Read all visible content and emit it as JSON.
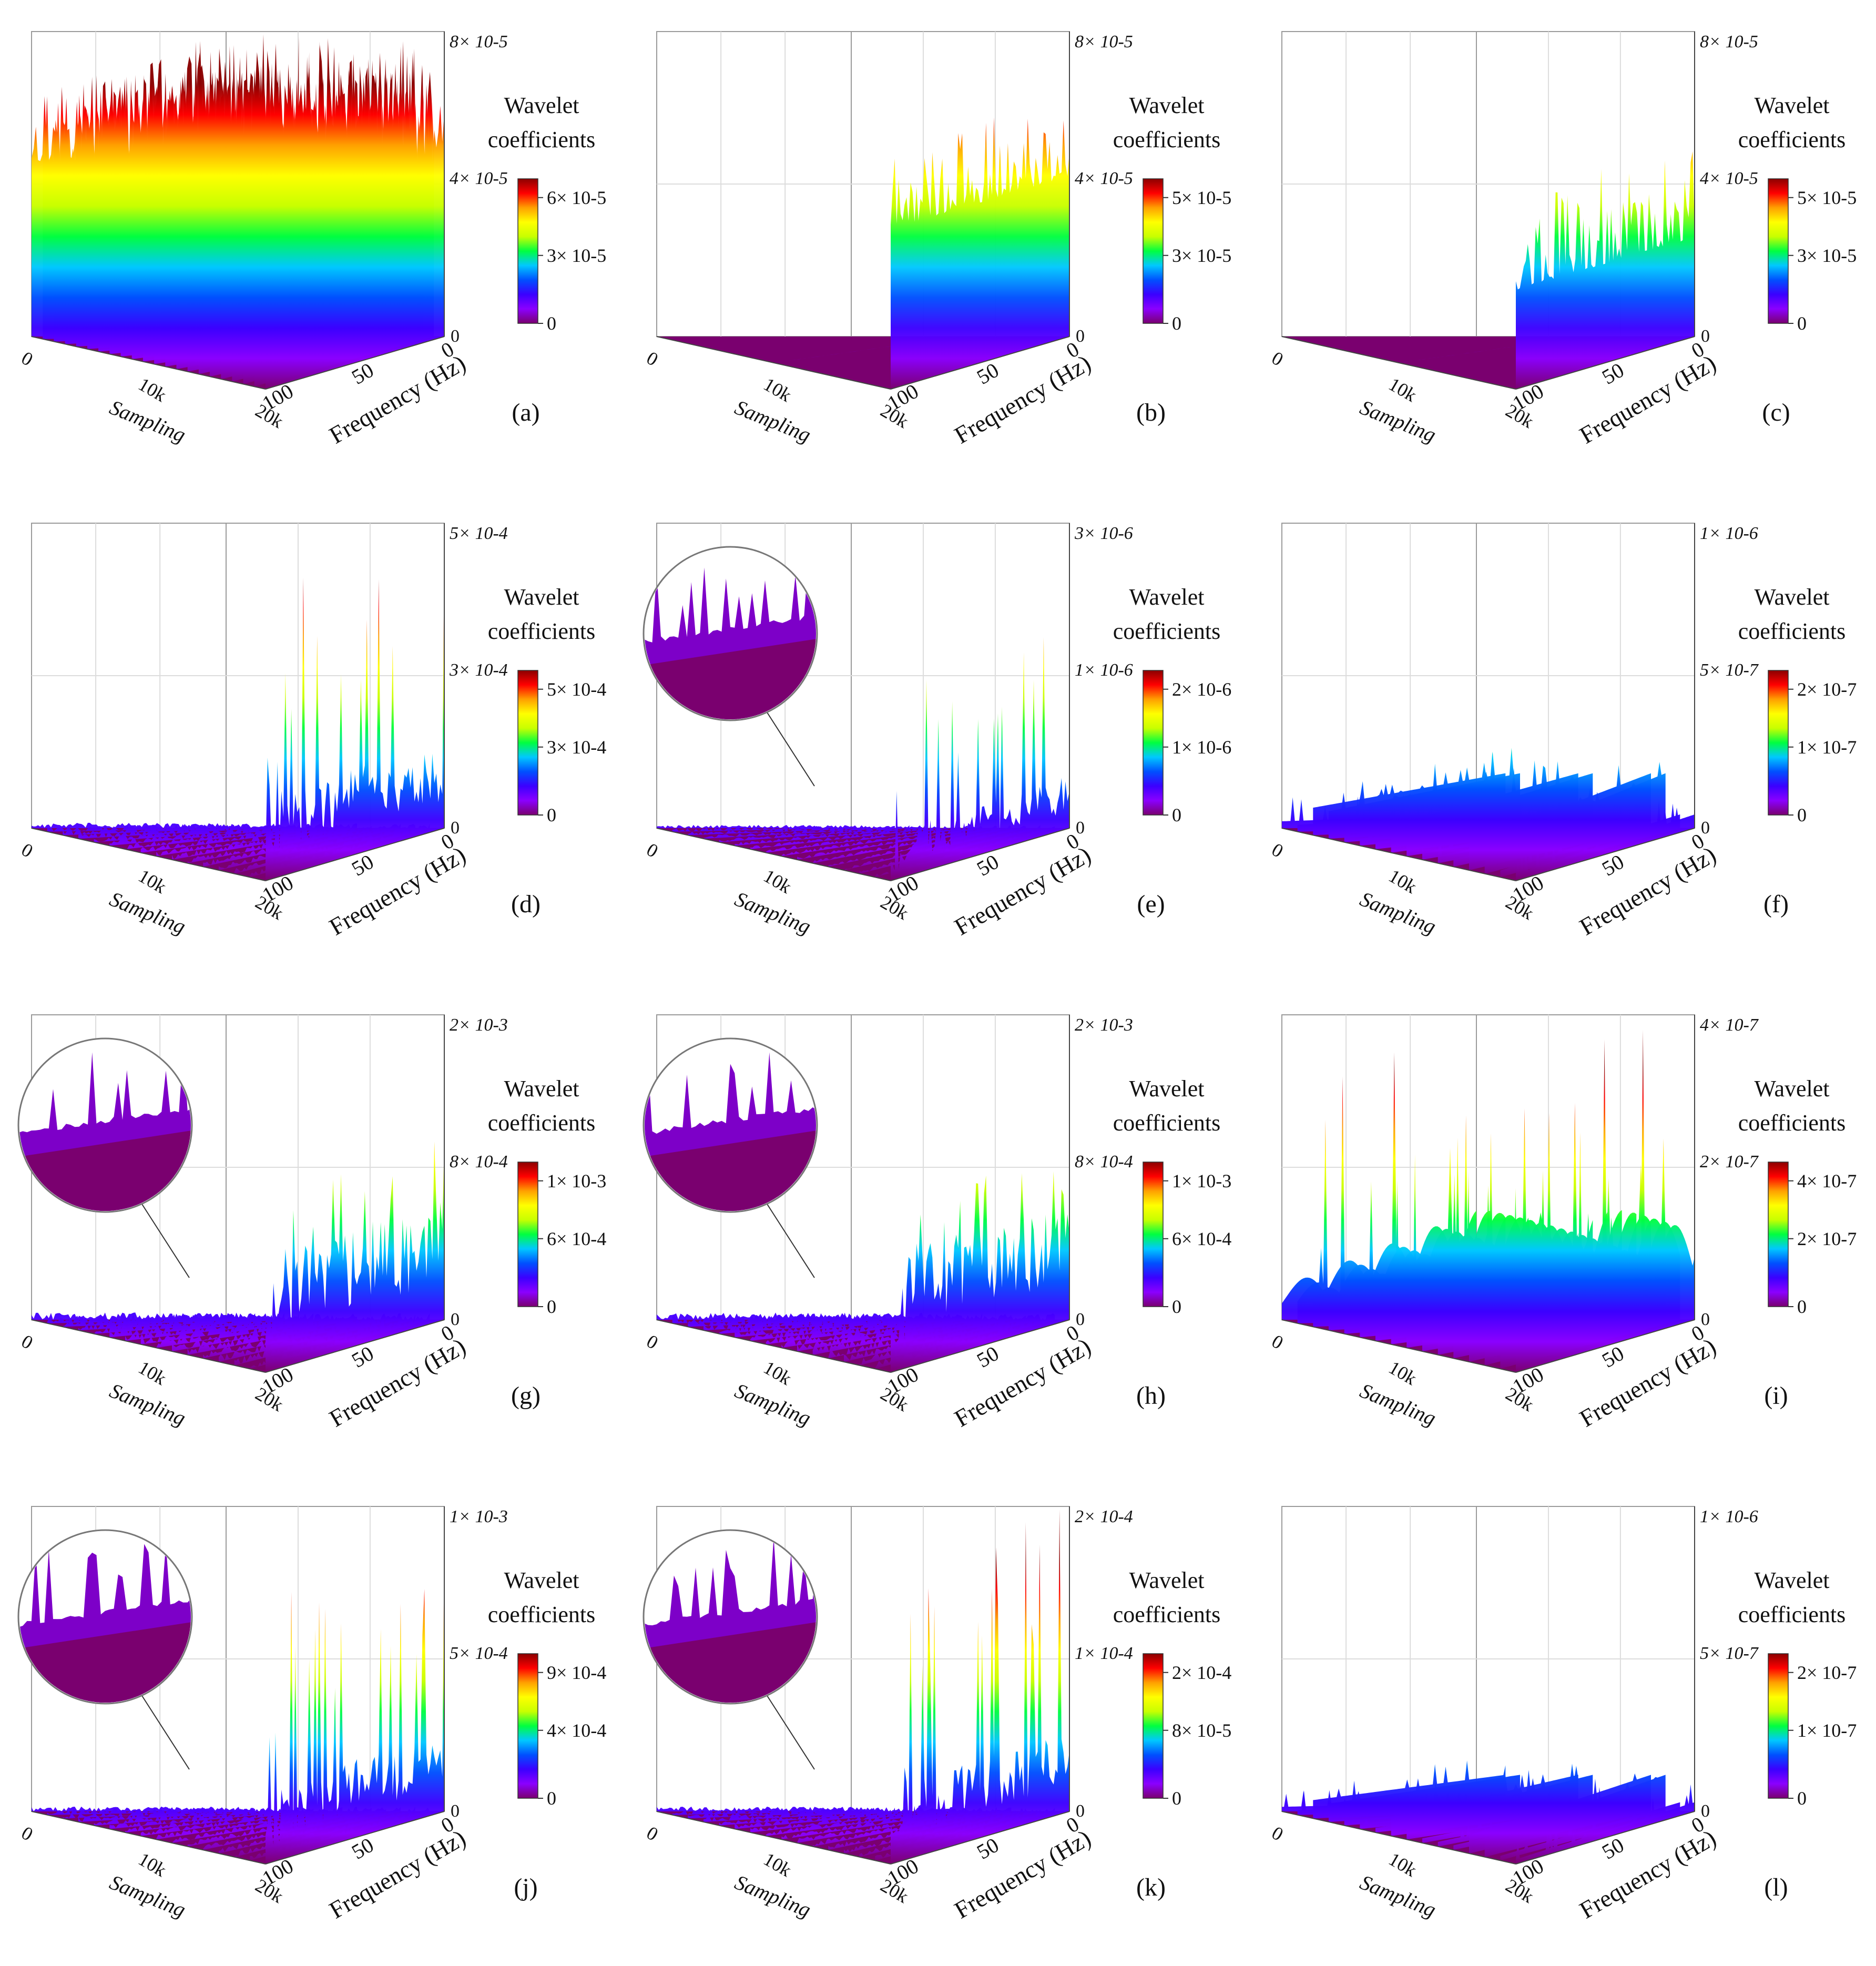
{
  "figure": {
    "colorbar_title_line1": "Wavelet",
    "colorbar_title_line2": "coefficients",
    "x_label": "Sampling",
    "y_label": "Frequency (Hz)",
    "x_ticks": [
      "0",
      "10k",
      "20k"
    ],
    "y_ticks": [
      "0",
      "50",
      "100"
    ],
    "colormap": [
      "#7a006f",
      "#8b00ff",
      "#3b00ff",
      "#0050ff",
      "#00c8ff",
      "#00ff40",
      "#c8ff00",
      "#ffff00",
      "#ffa000",
      "#ff0000",
      "#8b0000"
    ]
  },
  "chart_data": [
    {
      "type": "surface3d",
      "panel_label": "(a)",
      "zmax_label": "8× 10-5",
      "zmid_label": "4× 10-5",
      "zmin_label": "0",
      "colorbar_ticks": [
        "0",
        "3× 10-5",
        "6× 10-5"
      ],
      "x_range": [
        0,
        20000
      ],
      "y_range": [
        0,
        100
      ],
      "z_range": [
        0,
        8e-05
      ],
      "colorbar_range": [
        0,
        7e-05
      ],
      "surface": "plateau",
      "mean_level": 4.6e-05,
      "peak_level": 7.2e-05,
      "start_fraction": 0.0,
      "zoom_inset": false
    },
    {
      "type": "surface3d",
      "panel_label": "(b)",
      "zmax_label": "8× 10-5",
      "zmid_label": "4× 10-5",
      "zmin_label": "0",
      "colorbar_ticks": [
        "0",
        "3× 10-5",
        "5× 10-5"
      ],
      "x_range": [
        0,
        20000
      ],
      "y_range": [
        0,
        100
      ],
      "z_range": [
        0,
        8e-05
      ],
      "colorbar_range": [
        0,
        6e-05
      ],
      "surface": "step",
      "mean_level": 4.2e-05,
      "peak_level": 6.4e-05,
      "start_fraction": 0.92,
      "zoom_inset": false
    },
    {
      "type": "surface3d",
      "panel_label": "(c)",
      "zmax_label": "8× 10-5",
      "zmid_label": "4× 10-5",
      "zmin_label": "0",
      "colorbar_ticks": [
        "0",
        "3× 10-5",
        "5× 10-5"
      ],
      "x_range": [
        0,
        20000
      ],
      "y_range": [
        0,
        100
      ],
      "z_range": [
        0,
        8e-05
      ],
      "colorbar_range": [
        0,
        5.5e-05
      ],
      "surface": "step",
      "mean_level": 2.6e-05,
      "peak_level": 5.2e-05,
      "start_fraction": 0.97,
      "zoom_inset": false
    },
    {
      "type": "surface3d",
      "panel_label": "(d)",
      "zmax_label": "5× 10-4",
      "zmid_label": "3× 10-4",
      "zmin_label": "0",
      "colorbar_ticks": [
        "0",
        "3× 10-4",
        "5× 10-4"
      ],
      "x_range": [
        0,
        20000
      ],
      "y_range": [
        0,
        100
      ],
      "z_range": [
        0,
        0.0005
      ],
      "colorbar_range": [
        0,
        0.00052
      ],
      "surface": "spikes",
      "mean_level": 0.00011,
      "peak_level": 0.00048,
      "start_fraction": 0.95,
      "zoom_inset": false
    },
    {
      "type": "surface3d",
      "panel_label": "(e)",
      "zmax_label": "3× 10-6",
      "zmid_label": "1× 10-6",
      "zmin_label": "0",
      "colorbar_ticks": [
        "0",
        "1× 10-6",
        "2× 10-6"
      ],
      "x_range": [
        0,
        20000
      ],
      "y_range": [
        0,
        100
      ],
      "z_range": [
        0,
        3e-06
      ],
      "colorbar_range": [
        0,
        2.2e-06
      ],
      "surface": "spikes",
      "mean_level": 4e-07,
      "peak_level": 2.1e-06,
      "start_fraction": 0.9,
      "zoom_inset": true
    },
    {
      "type": "surface3d",
      "panel_label": "(f)",
      "zmax_label": "1× 10-6",
      "zmid_label": "5× 10-7",
      "zmin_label": "0",
      "colorbar_ticks": [
        "0",
        "1× 10-7",
        "2× 10-7"
      ],
      "x_range": [
        0,
        20000
      ],
      "y_range": [
        0,
        100
      ],
      "z_range": [
        0,
        1e-06
      ],
      "colorbar_range": [
        0,
        2.8e-07
      ],
      "surface": "ridges",
      "mean_level": 1.8e-07,
      "peak_level": 2.7e-07,
      "start_fraction": 0.0,
      "zoom_inset": false
    },
    {
      "type": "surface3d",
      "panel_label": "(g)",
      "zmax_label": "2× 10-3",
      "zmid_label": "8× 10-4",
      "zmin_label": "0",
      "colorbar_ticks": [
        "0",
        "6× 10-4",
        "1× 10-3"
      ],
      "x_range": [
        0,
        20000
      ],
      "y_range": [
        0,
        100
      ],
      "z_range": [
        0,
        0.002
      ],
      "colorbar_range": [
        0,
        0.0012
      ],
      "surface": "spikes",
      "mean_level": 0.0006,
      "peak_level": 0.0012,
      "start_fraction": 0.95,
      "zoom_inset": true
    },
    {
      "type": "surface3d",
      "panel_label": "(h)",
      "zmax_label": "2× 10-3",
      "zmid_label": "8× 10-4",
      "zmin_label": "0",
      "colorbar_ticks": [
        "0",
        "6× 10-4",
        "1× 10-3"
      ],
      "x_range": [
        0,
        20000
      ],
      "y_range": [
        0,
        100
      ],
      "z_range": [
        0,
        0.002
      ],
      "colorbar_range": [
        0,
        0.0012
      ],
      "surface": "spikes",
      "mean_level": 0.0006,
      "peak_level": 0.0012,
      "start_fraction": 0.95,
      "zoom_inset": true
    },
    {
      "type": "surface3d",
      "panel_label": "(i)",
      "zmax_label": "4× 10-7",
      "zmid_label": "2× 10-7",
      "zmin_label": "0",
      "colorbar_ticks": [
        "0",
        "2× 10-7",
        "4× 10-7"
      ],
      "x_range": [
        0,
        20000
      ],
      "y_range": [
        0,
        100
      ],
      "z_range": [
        0,
        4e-07
      ],
      "colorbar_range": [
        0,
        4.2e-07
      ],
      "surface": "hills",
      "mean_level": 1.2e-07,
      "peak_level": 4e-07,
      "start_fraction": 0.0,
      "zoom_inset": false
    },
    {
      "type": "surface3d",
      "panel_label": "(j)",
      "zmax_label": "1× 10-3",
      "zmid_label": "5× 10-4",
      "zmin_label": "0",
      "colorbar_ticks": [
        "0",
        "4× 10-4",
        "9× 10-4"
      ],
      "x_range": [
        0,
        20000
      ],
      "y_range": [
        0,
        100
      ],
      "z_range": [
        0,
        0.001
      ],
      "colorbar_range": [
        0,
        0.00095
      ],
      "surface": "spikes",
      "mean_level": 0.0002,
      "peak_level": 0.0009,
      "start_fraction": 0.95,
      "zoom_inset": true
    },
    {
      "type": "surface3d",
      "panel_label": "(k)",
      "zmax_label": "2× 10-4",
      "zmid_label": "1× 10-4",
      "zmin_label": "0",
      "colorbar_ticks": [
        "0",
        "8× 10-5",
        "2× 10-4"
      ],
      "x_range": [
        0,
        20000
      ],
      "y_range": [
        0,
        100
      ],
      "z_range": [
        0,
        0.0002
      ],
      "colorbar_range": [
        0,
        0.00023
      ],
      "surface": "spikes",
      "mean_level": 4e-05,
      "peak_level": 0.00022,
      "start_fraction": 0.9,
      "zoom_inset": true
    },
    {
      "type": "surface3d",
      "panel_label": "(l)",
      "zmax_label": "1× 10-6",
      "zmid_label": "5× 10-7",
      "zmin_label": "0",
      "colorbar_ticks": [
        "0",
        "1× 10-7",
        "2× 10-7"
      ],
      "x_range": [
        0,
        20000
      ],
      "y_range": [
        0,
        100
      ],
      "z_range": [
        0,
        1e-06
      ],
      "colorbar_range": [
        0,
        2e-07
      ],
      "surface": "ridges",
      "mean_level": 1.2e-07,
      "peak_level": 1.9e-07,
      "start_fraction": 0.0,
      "zoom_inset": false
    }
  ]
}
